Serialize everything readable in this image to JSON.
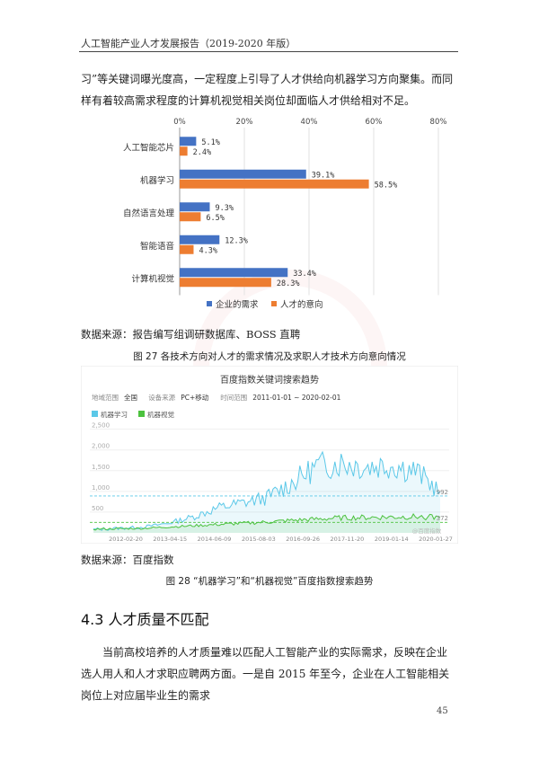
{
  "header": {
    "title": "人工智能产业人才发展报告（2019-2020 年版）"
  },
  "paragraph1": "习”等关键词曝光度高，一定程度上引导了人才供给向机器学习方向聚集。而同样有着较高需求程度的计算机视觉相关岗位却面临人才供给相对不足。",
  "chart1_source": "数据来源：报告编写组调研数据库、BOSS 直聘",
  "figure27_caption": "图 27 各技术方向对人才的需求情况及求职人才技术方向意向情况",
  "chart2_source": "数据来源：百度指数",
  "figure28_caption": "图 28 “机器学习”和“机器视觉”百度指数搜索趋势",
  "section_title": "4.3 人才质量不匹配",
  "paragraph2": "当前高校培养的人才质量难以匹配人工智能产业的实际需求，反映在企业选人用人和人才求职应聘两方面。一是自 2015 年至今，企业在人工智能相关岗位上对应届毕业生的需求",
  "page_number": "45",
  "colors": {
    "demand": "#4472C4",
    "intent": "#ED7D31",
    "ml_line": "#5BC8E8",
    "cv_line": "#4CC23E"
  },
  "chart_data": [
    {
      "type": "bar",
      "orientation": "horizontal",
      "categories": [
        "人工智能芯片",
        "机器学习",
        "自然语言处理",
        "智能语音",
        "计算机视觉"
      ],
      "x_ticks": [
        "0%",
        "20%",
        "40%",
        "60%",
        "80%"
      ],
      "xlim": [
        0,
        80
      ],
      "series": [
        {
          "name": "企业的需求",
          "values": [
            5.1,
            39.1,
            9.3,
            12.3,
            33.4
          ],
          "labels": [
            "5.1%",
            "39.1%",
            "9.3%",
            "12.3%",
            "33.4%"
          ]
        },
        {
          "name": "人才的意向",
          "values": [
            2.4,
            58.5,
            6.5,
            4.3,
            28.3
          ],
          "labels": [
            "2.4%",
            "58.5%",
            "6.5%",
            "4.3%",
            "28.3%"
          ]
        }
      ],
      "legend_position": "bottom"
    },
    {
      "type": "line",
      "title": "百度指数关键词搜索趋势",
      "meta": [
        {
          "label": "地域范围",
          "value": "全国"
        },
        {
          "label": "设备来源",
          "value": "PC+移动"
        },
        {
          "label": "时间范围",
          "value": "2011-01-01 ~ 2020-02-01"
        }
      ],
      "legend": [
        "机器学习",
        "机器视觉"
      ],
      "y_ticks": [
        "2,500",
        "2,000",
        "1,500",
        "1,000",
        "500"
      ],
      "ylim": [
        0,
        2600
      ],
      "x_ticks": [
        "2012-02-20",
        "2013-04-15",
        "2014-06-09",
        "2015-08-03",
        "2016-09-26",
        "2017-11-20",
        "2019-01-14",
        "2020-01-27"
      ],
      "end_labels": [
        "992",
        "372"
      ],
      "watermark": "@百度指数",
      "series": [
        {
          "name": "机器学习",
          "x": [
            "2011",
            "2012",
            "2013",
            "2014",
            "2015",
            "2015.5",
            "2016",
            "2016.5",
            "2017",
            "2017.5",
            "2018",
            "2018.5",
            "2019",
            "2019.5",
            "2020"
          ],
          "values": [
            80,
            110,
            140,
            230,
            380,
            600,
            720,
            850,
            1200,
            1600,
            1700,
            1600,
            1650,
            1500,
            992
          ]
        },
        {
          "name": "机器视觉",
          "x": [
            "2011",
            "2012",
            "2013",
            "2014",
            "2015",
            "2015.5",
            "2016",
            "2016.5",
            "2017",
            "2017.5",
            "2018",
            "2018.5",
            "2019",
            "2019.5",
            "2020"
          ],
          "values": [
            90,
            100,
            110,
            140,
            170,
            200,
            230,
            260,
            300,
            330,
            360,
            370,
            380,
            390,
            372
          ]
        }
      ]
    }
  ]
}
